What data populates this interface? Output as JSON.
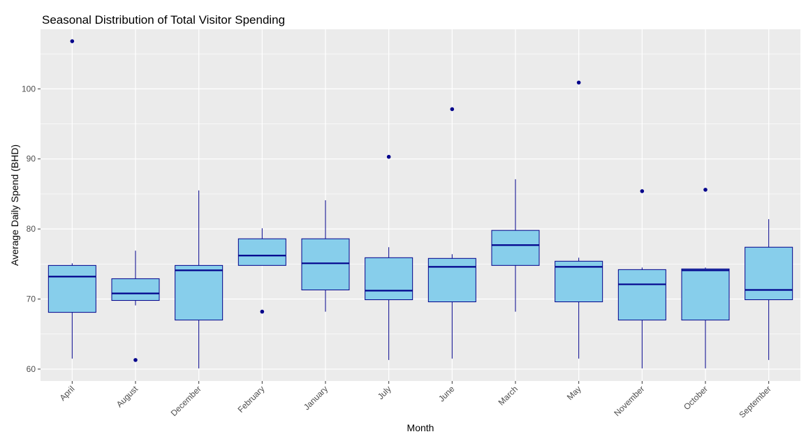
{
  "chart_data": {
    "type": "boxplot",
    "title": "Seasonal Distribution of Total Visitor Spending",
    "xlabel": "Month",
    "ylabel": "Average Daily Spend (BHD)",
    "ylim": [
      58.3,
      108.5
    ],
    "yticks": [
      60,
      70,
      80,
      90,
      100
    ],
    "grid": true,
    "colors": {
      "panel": "#ebebeb",
      "grid": "#ffffff",
      "box_fill": "#87ceeb",
      "box_line": "#00008b",
      "outlier": "#00008b",
      "tick_text": "#4d4d4d"
    },
    "categories": [
      "April",
      "August",
      "December",
      "February",
      "January",
      "July",
      "June",
      "March",
      "May",
      "November",
      "October",
      "September"
    ],
    "boxes": [
      {
        "category": "April",
        "lower_whisker": 61.5,
        "q1": 68.1,
        "median": 73.2,
        "q3": 74.8,
        "upper_whisker": 75.1,
        "outliers": [
          106.8
        ]
      },
      {
        "category": "August",
        "lower_whisker": 69.1,
        "q1": 69.8,
        "median": 70.8,
        "q3": 72.9,
        "upper_whisker": 76.9,
        "outliers": [
          61.3
        ]
      },
      {
        "category": "December",
        "lower_whisker": 60.1,
        "q1": 67.0,
        "median": 74.1,
        "q3": 74.8,
        "upper_whisker": 85.5,
        "outliers": []
      },
      {
        "category": "February",
        "lower_whisker": 74.8,
        "q1": 74.8,
        "median": 76.2,
        "q3": 78.6,
        "upper_whisker": 80.1,
        "outliers": [
          68.2
        ]
      },
      {
        "category": "January",
        "lower_whisker": 68.2,
        "q1": 71.3,
        "median": 75.1,
        "q3": 78.6,
        "upper_whisker": 84.1,
        "outliers": []
      },
      {
        "category": "July",
        "lower_whisker": 61.3,
        "q1": 69.9,
        "median": 71.2,
        "q3": 75.9,
        "upper_whisker": 77.4,
        "outliers": [
          90.3
        ]
      },
      {
        "category": "June",
        "lower_whisker": 61.5,
        "q1": 69.6,
        "median": 74.6,
        "q3": 75.8,
        "upper_whisker": 76.4,
        "outliers": [
          97.1
        ]
      },
      {
        "category": "March",
        "lower_whisker": 68.2,
        "q1": 74.8,
        "median": 77.7,
        "q3": 79.8,
        "upper_whisker": 87.1,
        "outliers": []
      },
      {
        "category": "May",
        "lower_whisker": 61.5,
        "q1": 69.6,
        "median": 74.6,
        "q3": 75.4,
        "upper_whisker": 75.9,
        "outliers": [
          100.9
        ]
      },
      {
        "category": "November",
        "lower_whisker": 60.1,
        "q1": 67.0,
        "median": 72.1,
        "q3": 74.2,
        "upper_whisker": 74.5,
        "outliers": [
          85.4
        ]
      },
      {
        "category": "October",
        "lower_whisker": 60.1,
        "q1": 67.0,
        "median": 74.1,
        "q3": 74.3,
        "upper_whisker": 74.5,
        "outliers": [
          85.6
        ]
      },
      {
        "category": "September",
        "lower_whisker": 61.3,
        "q1": 69.9,
        "median": 71.3,
        "q3": 77.4,
        "upper_whisker": 81.4,
        "outliers": []
      }
    ]
  }
}
